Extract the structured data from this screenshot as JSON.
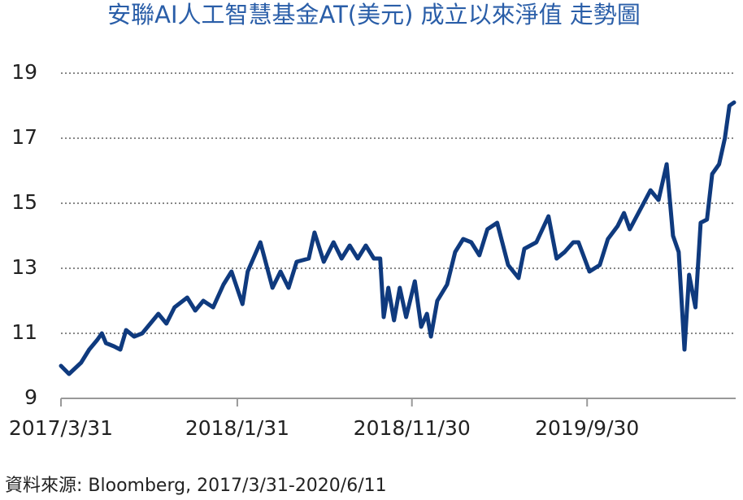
{
  "chart_data": {
    "type": "line",
    "title": "安聯AI人工智慧基金AT(美元)  成立以來淨值 走勢圖",
    "source": "資料來源: Bloomberg, 2017/3/31-2020/6/11",
    "xlim": [
      "2017/3/31",
      "2020/6/11"
    ],
    "xticks": [
      "2017/3/31",
      "2018/1/31",
      "2018/11/30",
      "2019/9/30"
    ],
    "ylim": [
      9,
      19
    ],
    "yticks": [
      9,
      11,
      13,
      15,
      17,
      19
    ],
    "grid": true,
    "x": [
      "2017/3/31",
      "2017/4/14",
      "2017/5/5",
      "2017/5/19",
      "2017/6/2",
      "2017/6/10",
      "2017/6/17",
      "2017/7/1",
      "2017/7/12",
      "2017/7/22",
      "2017/8/5",
      "2017/8/19",
      "2017/9/2",
      "2017/9/16",
      "2017/9/30",
      "2017/10/14",
      "2017/11/5",
      "2017/11/19",
      "2017/12/3",
      "2017/12/20",
      "2018/1/7",
      "2018/1/21",
      "2018/2/9",
      "2018/2/18",
      "2018/3/12",
      "2018/4/2",
      "2018/4/16",
      "2018/4/30",
      "2018/5/14",
      "2018/6/4",
      "2018/6/14",
      "2018/6/30",
      "2018/7/17",
      "2018/7/31",
      "2018/8/14",
      "2018/8/28",
      "2018/9/11",
      "2018/9/25",
      "2018/10/6",
      "2018/10/12",
      "2018/10/20",
      "2018/10/30",
      "2018/11/9",
      "2018/11/20",
      "2018/12/5",
      "2018/12/16",
      "2018/12/26",
      "2019/1/2",
      "2019/1/13",
      "2019/1/30",
      "2019/2/13",
      "2019/2/27",
      "2019/3/13",
      "2019/3/27",
      "2019/4/10",
      "2019/4/27",
      "2019/5/16",
      "2019/6/3",
      "2019/6/13",
      "2019/7/4",
      "2019/7/25",
      "2019/8/8",
      "2019/8/22",
      "2019/9/6",
      "2019/9/15",
      "2019/10/4",
      "2019/10/22",
      "2019/11/5",
      "2019/11/22",
      "2019/12/3",
      "2019/12/13",
      "2020/1/3",
      "2020/1/18",
      "2020/2/1",
      "2020/2/15",
      "2020/2/26",
      "2020/3/7",
      "2020/3/17",
      "2020/3/25",
      "2020/4/5",
      "2020/4/14",
      "2020/4/25",
      "2020/5/4",
      "2020/5/16",
      "2020/5/26",
      "2020/6/3",
      "2020/6/11"
    ],
    "series": [
      {
        "color": "#0f3a7e",
        "values": [
          10.0,
          9.75,
          10.1,
          10.5,
          10.8,
          11.0,
          10.7,
          10.6,
          10.5,
          11.1,
          10.9,
          11.0,
          11.3,
          11.6,
          11.3,
          11.8,
          12.1,
          11.7,
          12.0,
          11.8,
          12.5,
          12.9,
          11.9,
          12.9,
          13.8,
          12.4,
          12.9,
          12.4,
          13.2,
          13.3,
          14.1,
          13.2,
          13.8,
          13.3,
          13.7,
          13.3,
          13.7,
          13.3,
          13.3,
          11.5,
          12.4,
          11.4,
          12.4,
          11.5,
          12.6,
          11.2,
          11.6,
          10.9,
          12.0,
          12.5,
          13.5,
          13.9,
          13.8,
          13.4,
          14.2,
          14.4,
          13.1,
          12.7,
          13.6,
          13.8,
          14.6,
          13.3,
          13.5,
          13.8,
          13.8,
          12.9,
          13.1,
          13.9,
          14.3,
          14.7,
          14.2,
          14.9,
          15.4,
          15.1,
          16.2,
          14.0,
          13.5,
          10.5,
          12.8,
          11.8,
          14.4,
          14.5,
          15.9,
          16.2,
          17.0,
          18.0,
          18.1
        ]
      }
    ]
  }
}
